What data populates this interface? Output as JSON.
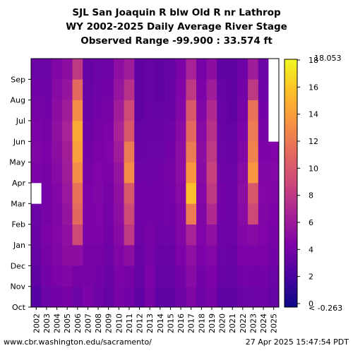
{
  "title": {
    "line1": "SJL San Joaquin R blw Old R nr Lathrop",
    "line2": "WY 2002-2025 Daily Average River Stage",
    "line3": "Observed Range -99.900 : 33.574 ft"
  },
  "footer": {
    "left": "www.cbr.washington.edu/sacramento/",
    "right": "27 Apr 2025 15:47:54 PDT"
  },
  "chart_data": {
    "type": "heatmap",
    "title": "SJL San Joaquin R blw Old R nr Lathrop",
    "x": [
      "2002",
      "2003",
      "2004",
      "2005",
      "2006",
      "2007",
      "2008",
      "2009",
      "2010",
      "2011",
      "2012",
      "2013",
      "2014",
      "2015",
      "2016",
      "2017",
      "2018",
      "2019",
      "2020",
      "2021",
      "2022",
      "2023",
      "2024",
      "2025"
    ],
    "y": [
      "Oct",
      "Nov",
      "Dec",
      "Jan",
      "Feb",
      "Mar",
      "Apr",
      "May",
      "Jun",
      "Jul",
      "Aug",
      "Sep"
    ],
    "values": [
      [
        2.5,
        3.5,
        3.8,
        4.0,
        3.5,
        4.2,
        3.6,
        3.2,
        4.0,
        3.8,
        3.0,
        4.0,
        3.0,
        3.0,
        3.6,
        4.5,
        3.6,
        4.0,
        3.0,
        3.0,
        3.5,
        3.5,
        3.6,
        3.2
      ],
      [
        3.0,
        3.8,
        4.2,
        4.5,
        4.0,
        4.0,
        3.8,
        3.4,
        4.2,
        4.0,
        3.2,
        4.2,
        3.2,
        3.2,
        3.8,
        4.8,
        3.8,
        4.3,
        3.3,
        3.2,
        3.8,
        3.8,
        3.8,
        3.5
      ],
      [
        3.2,
        4.0,
        4.5,
        5.0,
        5.0,
        4.0,
        4.0,
        3.6,
        4.5,
        5.0,
        3.4,
        4.0,
        3.4,
        3.4,
        4.2,
        5.2,
        4.2,
        4.6,
        3.5,
        3.4,
        4.2,
        4.2,
        4.2,
        3.8
      ],
      [
        3.4,
        4.2,
        4.6,
        5.2,
        9.0,
        4.2,
        4.2,
        3.8,
        4.8,
        8.0,
        3.6,
        4.0,
        3.6,
        3.6,
        4.5,
        6.5,
        4.4,
        5.2,
        3.6,
        3.6,
        4.6,
        4.8,
        4.4,
        4.0
      ],
      [
        3.5,
        4.0,
        4.5,
        5.5,
        11.0,
        4.3,
        4.4,
        3.9,
        5.0,
        9.0,
        3.7,
        3.8,
        3.7,
        3.8,
        4.6,
        12.0,
        4.5,
        7.0,
        3.7,
        3.6,
        4.8,
        9.0,
        4.5,
        4.2
      ],
      [
        null,
        3.9,
        4.6,
        5.8,
        11.5,
        4.2,
        4.5,
        4.0,
        5.2,
        10.0,
        3.8,
        3.7,
        3.8,
        3.9,
        4.8,
        15.5,
        4.6,
        8.0,
        3.8,
        3.6,
        5.0,
        10.0,
        4.6,
        4.5
      ],
      [
        4.2,
        4.0,
        4.8,
        6.0,
        13.0,
        4.0,
        4.4,
        4.2,
        5.5,
        13.0,
        3.6,
        3.6,
        3.7,
        4.0,
        5.0,
        13.5,
        4.8,
        8.5,
        3.6,
        3.5,
        4.8,
        13.5,
        4.5,
        4.6
      ],
      [
        4.5,
        4.2,
        5.0,
        6.2,
        14.0,
        3.8,
        4.2,
        4.4,
        6.0,
        12.0,
        3.4,
        3.5,
        3.5,
        3.8,
        5.0,
        12.0,
        5.0,
        8.0,
        3.5,
        3.3,
        4.5,
        12.5,
        4.3,
        4.4
      ],
      [
        4.2,
        4.0,
        5.2,
        6.5,
        14.5,
        3.6,
        4.0,
        4.2,
        6.5,
        10.0,
        3.2,
        3.4,
        3.4,
        3.6,
        4.8,
        11.0,
        4.8,
        7.5,
        3.4,
        3.2,
        4.2,
        12.0,
        4.0,
        null
      ],
      [
        4.0,
        3.8,
        5.0,
        6.0,
        13.0,
        3.4,
        3.8,
        4.0,
        6.0,
        9.0,
        3.0,
        3.3,
        3.2,
        3.4,
        4.6,
        10.0,
        4.5,
        7.0,
        3.3,
        3.0,
        4.0,
        11.5,
        3.8,
        null
      ],
      [
        3.8,
        3.6,
        4.8,
        5.5,
        11.0,
        3.3,
        3.6,
        3.8,
        5.5,
        7.5,
        3.0,
        3.2,
        3.0,
        3.3,
        4.4,
        8.0,
        4.2,
        6.0,
        3.2,
        3.0,
        3.8,
        8.0,
        3.6,
        null
      ],
      [
        3.5,
        3.5,
        4.5,
        5.0,
        8.0,
        3.2,
        3.5,
        3.6,
        5.0,
        6.0,
        3.0,
        3.2,
        3.0,
        3.2,
        4.2,
        6.5,
        4.0,
        5.0,
        3.0,
        3.0,
        3.6,
        6.0,
        3.5,
        null
      ]
    ],
    "xlim": [
      "2002",
      "2025"
    ],
    "ylim": [
      "Oct",
      "Sep"
    ],
    "colorbar": {
      "ticks": [
        "0",
        "2",
        "4",
        "6",
        "8",
        "10",
        "12",
        "14",
        "16",
        "18"
      ],
      "max_label": "18.053",
      "min_label": "< -0.263",
      "range": [
        -0.263,
        18.053
      ]
    },
    "grid": false,
    "legend": "colorbar-right"
  },
  "colors": {
    "low": "#0d0887",
    "mid_low": "#5c01a6",
    "mid": "#cc4778",
    "mid_high": "#f89540",
    "high": "#f0f921",
    "missing": "#ffffff"
  }
}
